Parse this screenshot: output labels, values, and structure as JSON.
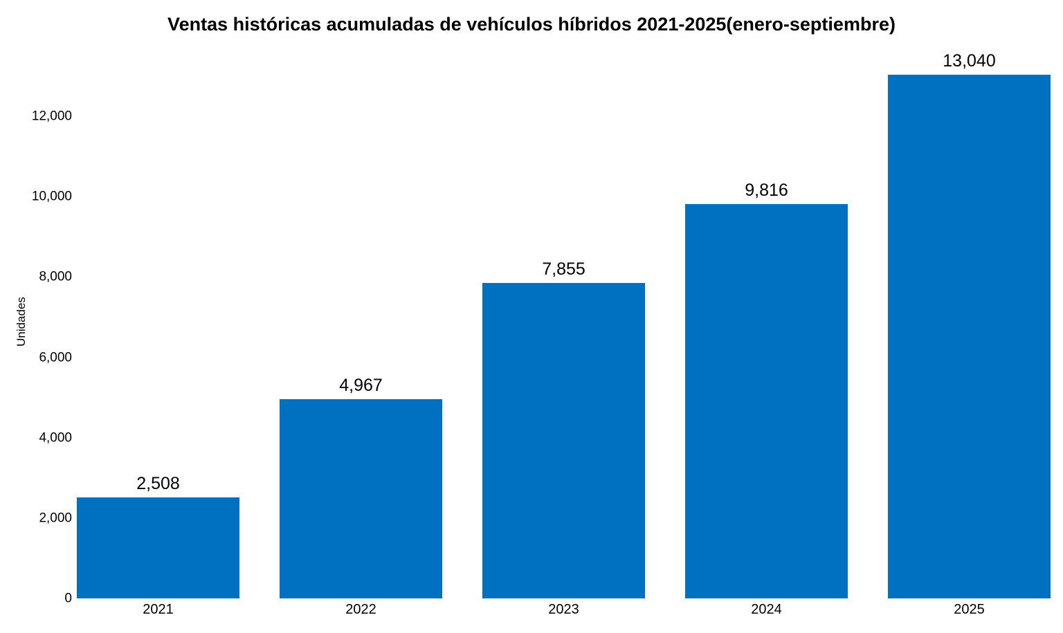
{
  "chart_data": {
    "type": "bar",
    "title": "Ventas históricas acumuladas de vehículos híbridos 2021-2025(enero-septiembre)",
    "ylabel": "Unidades",
    "xlabel": "",
    "categories": [
      "2021",
      "2022",
      "2023",
      "2024",
      "2025"
    ],
    "values": [
      2508,
      4967,
      7855,
      9816,
      13040
    ],
    "value_labels": [
      "2,508",
      "4,967",
      "7,855",
      "9,816",
      "13,040"
    ],
    "yticks": [
      {
        "value": 0,
        "label": "0"
      },
      {
        "value": 2000,
        "label": "2,000"
      },
      {
        "value": 4000,
        "label": "4,000"
      },
      {
        "value": 6000,
        "label": "6,000"
      },
      {
        "value": 8000,
        "label": "8,000"
      },
      {
        "value": 10000,
        "label": "10,000"
      },
      {
        "value": 12000,
        "label": "12,000"
      }
    ],
    "ylim": [
      0,
      13770
    ],
    "grid": false,
    "legend": false,
    "bar_color": "#0070C0",
    "text_color": "#000000",
    "background_color": "#ffffff"
  }
}
